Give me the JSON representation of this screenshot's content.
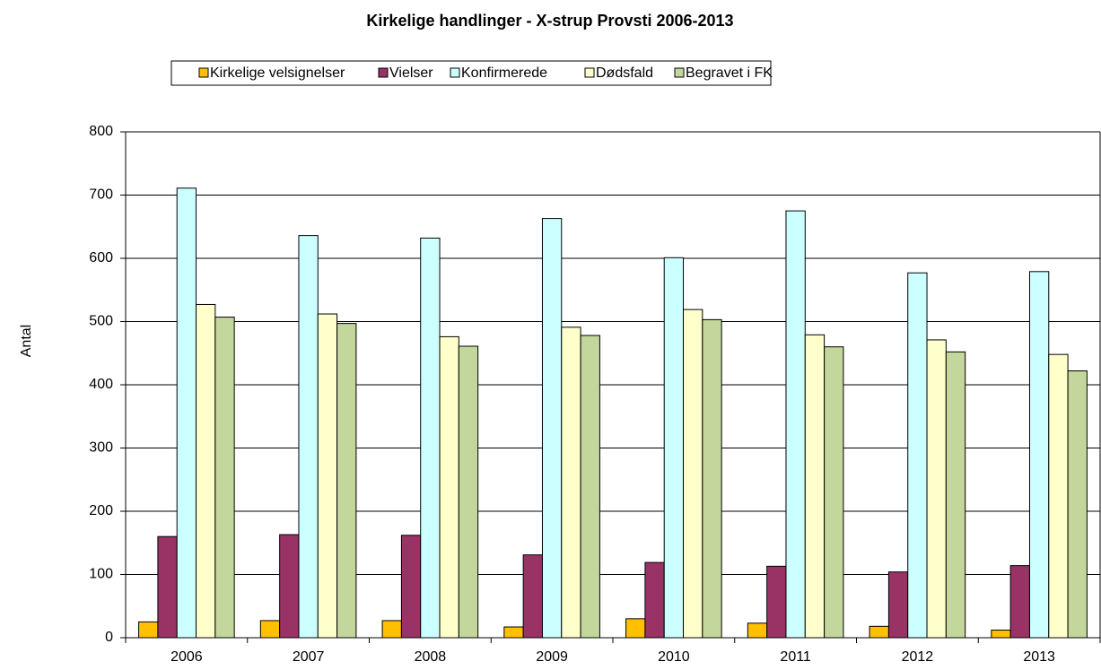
{
  "chart_data": {
    "type": "bar",
    "title": "Kirkelige handlinger - X-strup Provsti 2006-2013",
    "y_label": "Antal",
    "categories": [
      "2006",
      "2007",
      "2008",
      "2009",
      "2010",
      "2011",
      "2012",
      "2013"
    ],
    "series": [
      {
        "name": "Kirkelige velsignelser",
        "color": "#ffc000",
        "values": [
          25,
          27,
          27,
          17,
          30,
          23,
          18,
          12
        ]
      },
      {
        "name": "Vielser",
        "color": "#993366",
        "values": [
          160,
          163,
          162,
          131,
          119,
          113,
          104,
          114
        ]
      },
      {
        "name": "Konfirmerede",
        "color": "#ccffff",
        "values": [
          711,
          636,
          632,
          663,
          601,
          675,
          577,
          579
        ]
      },
      {
        "name": "Dødsfald",
        "color": "#ffffcc",
        "values": [
          527,
          512,
          476,
          491,
          519,
          479,
          471,
          448
        ]
      },
      {
        "name": "Begravet i FK",
        "color": "#c3d69b",
        "values": [
          507,
          497,
          461,
          478,
          503,
          460,
          452,
          422
        ]
      }
    ],
    "ylim": [
      0,
      800
    ],
    "yticks": [
      0,
      100,
      200,
      300,
      400,
      500,
      600,
      700,
      800
    ],
    "grid": true,
    "legend": "top"
  }
}
